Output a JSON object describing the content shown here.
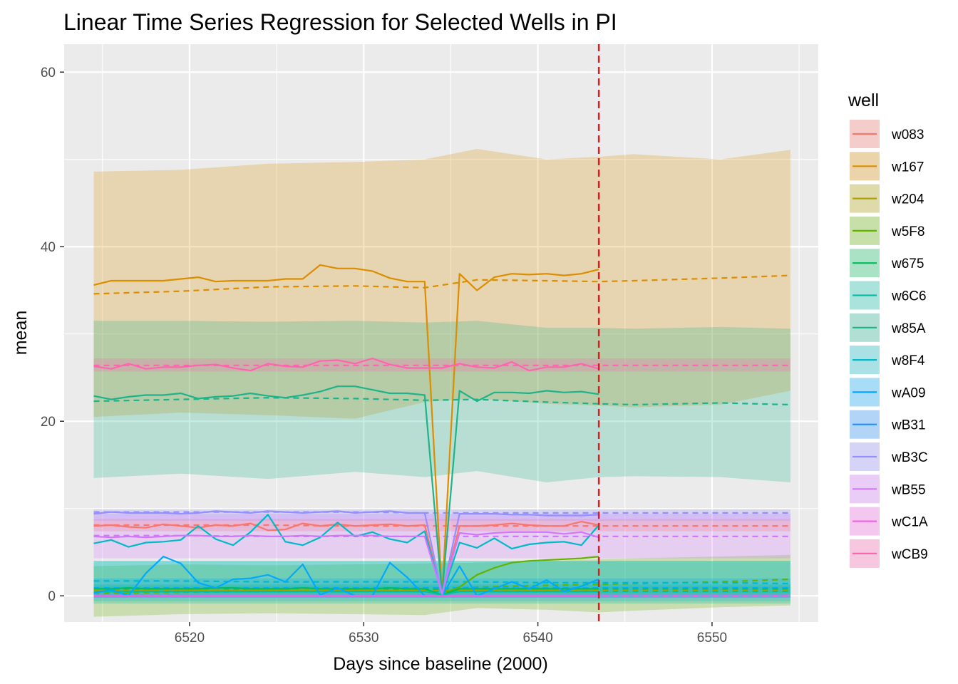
{
  "chart_data": {
    "type": "line",
    "title": "Linear Time Series Regression for Selected Wells in PI",
    "xlabel": "Days since baseline (2000)",
    "ylabel": "mean",
    "xlim": [
      6512.8,
      6556.1
    ],
    "ylim": [
      -3.0,
      63.2
    ],
    "x_ticks": [
      6520,
      6530,
      6540,
      6550
    ],
    "y_ticks": [
      0,
      20,
      40,
      60
    ],
    "grid": true,
    "legend": {
      "title": "well",
      "position": "right"
    },
    "vline": {
      "x": 6543.5,
      "color": "#e41a1c",
      "style": "dashed"
    },
    "x_obs": [
      6514.5,
      6515.5,
      6516.5,
      6517.5,
      6518.5,
      6519.5,
      6520.5,
      6521.5,
      6522.5,
      6523.5,
      6524.5,
      6525.5,
      6526.5,
      6527.5,
      6528.5,
      6529.5,
      6530.5,
      6531.5,
      6532.5,
      6533.5,
      6534.5,
      6535.5,
      6536.5,
      6537.5,
      6538.5,
      6539.5,
      6540.5,
      6541.5,
      6542.5,
      6543.5
    ],
    "x_fit": [
      6514.5,
      6519.5,
      6524.5,
      6529.5,
      6533.5,
      6536.5,
      6540.5,
      6543.5,
      6545.5,
      6550.5,
      6554.5
    ],
    "series": [
      {
        "name": "w083",
        "color": "#F8766D",
        "observed": [
          8.0,
          8.1,
          7.9,
          7.8,
          8.2,
          8.0,
          7.8,
          8.1,
          8.0,
          8.3,
          7.5,
          7.6,
          8.3,
          8.0,
          8.2,
          8.0,
          8.1,
          8.2,
          8.0,
          8.1,
          0.2,
          8.0,
          8.0,
          8.1,
          8.3,
          8.1,
          8.0,
          8.0,
          8.5,
          8.1
        ],
        "fitted": [
          8.1,
          8.1,
          8.1,
          8.0,
          8.0,
          8.0,
          8.0,
          8.0,
          8.0,
          8.0,
          8.0
        ],
        "lower": [
          7.4,
          7.4,
          7.4,
          7.4,
          7.4,
          7.4,
          7.4,
          7.4,
          7.4,
          7.4,
          7.4
        ],
        "upper": [
          8.8,
          8.8,
          8.8,
          8.8,
          8.8,
          8.8,
          8.8,
          8.8,
          8.8,
          8.8,
          8.8
        ]
      },
      {
        "name": "w167",
        "color": "#DB8E00",
        "observed": [
          35.6,
          36.1,
          36.1,
          36.1,
          36.1,
          36.3,
          36.5,
          36.0,
          36.1,
          36.1,
          36.1,
          36.3,
          36.3,
          37.9,
          37.5,
          37.5,
          37.2,
          36.4,
          36.0,
          36.0,
          0.1,
          36.9,
          35.0,
          36.5,
          36.9,
          36.8,
          36.9,
          36.7,
          36.9,
          37.4
        ],
        "fitted": [
          34.6,
          34.9,
          35.4,
          35.5,
          35.3,
          36.2,
          36.1,
          36.0,
          36.1,
          36.4,
          36.7
        ],
        "lower": [
          20.5,
          21.0,
          20.7,
          20.3,
          22.2,
          22.6,
          22.0,
          21.8,
          21.6,
          21.9,
          23.5
        ],
        "upper": [
          48.6,
          48.8,
          49.5,
          49.7,
          50.0,
          51.2,
          50.0,
          50.3,
          50.6,
          50.0,
          51.1
        ]
      },
      {
        "name": "w204",
        "color": "#AEA200",
        "observed": [
          0.5,
          0.6,
          0.5,
          0.6,
          0.5,
          0.6,
          0.6,
          0.7,
          0.6,
          0.6,
          0.7,
          0.6,
          0.7,
          0.7,
          0.6,
          0.6,
          0.7,
          0.6,
          0.6,
          0.6,
          0.1,
          0.6,
          0.6,
          0.7,
          0.7,
          0.7,
          0.6,
          0.7,
          0.7,
          0.7
        ],
        "fitted": [
          0.6,
          0.6,
          0.6,
          0.6,
          0.6,
          0.6,
          0.6,
          0.6,
          0.6,
          0.6,
          0.6
        ],
        "lower": [
          0.1,
          0.1,
          0.1,
          0.1,
          0.1,
          0.1,
          0.1,
          0.1,
          0.1,
          0.1,
          0.1
        ],
        "upper": [
          1.1,
          1.1,
          1.1,
          1.1,
          1.1,
          1.1,
          1.1,
          1.1,
          1.1,
          1.1,
          1.1
        ]
      },
      {
        "name": "w5F8",
        "color": "#64B200",
        "observed": [
          null,
          null,
          null,
          null,
          null,
          null,
          null,
          null,
          null,
          null,
          null,
          null,
          null,
          null,
          null,
          null,
          null,
          null,
          null,
          null,
          0.2,
          1.0,
          2.4,
          3.2,
          3.8,
          4.0,
          4.1,
          4.2,
          4.3,
          4.5
        ],
        "fitted": [
          0.3,
          0.4,
          0.5,
          0.7,
          0.7,
          1.0,
          1.2,
          1.3,
          1.4,
          1.6,
          1.9
        ],
        "lower": [
          -2.4,
          -2.1,
          -2.0,
          -2.1,
          -2.2,
          -1.4,
          -1.6,
          -1.9,
          -1.7,
          -1.3,
          -1.1
        ],
        "upper": [
          3.4,
          3.6,
          3.5,
          3.6,
          3.7,
          3.8,
          4.0,
          4.2,
          4.3,
          4.5,
          4.7
        ]
      },
      {
        "name": "w675",
        "color": "#00BD5C",
        "observed": [
          0.8,
          0.8,
          0.9,
          0.8,
          0.8,
          0.8,
          0.8,
          0.9,
          0.9,
          0.8,
          0.8,
          0.8,
          0.9,
          0.8,
          0.8,
          0.8,
          0.8,
          0.9,
          0.8,
          0.8,
          0.1,
          0.8,
          0.8,
          0.8,
          0.8,
          0.8,
          0.8,
          0.8,
          0.8,
          0.8
        ],
        "fitted": [
          0.8,
          0.8,
          0.8,
          0.8,
          0.8,
          0.8,
          0.8,
          0.8,
          0.8,
          0.8,
          0.8
        ],
        "lower": [
          0.3,
          0.3,
          0.3,
          0.3,
          0.3,
          0.3,
          0.3,
          0.3,
          0.3,
          0.3,
          0.3
        ],
        "upper": [
          1.3,
          1.3,
          1.3,
          1.3,
          1.3,
          1.3,
          1.3,
          1.3,
          1.3,
          1.3,
          1.3
        ]
      },
      {
        "name": "w6C6",
        "color": "#00C1A7",
        "observed": [
          0.5,
          0.5,
          0.5,
          0.5,
          0.5,
          0.5,
          0.5,
          0.5,
          0.5,
          0.5,
          0.5,
          0.5,
          0.5,
          0.5,
          0.5,
          0.5,
          0.5,
          0.5,
          0.5,
          0.5,
          0.1,
          0.5,
          0.5,
          0.5,
          0.5,
          0.5,
          0.5,
          0.5,
          0.5,
          0.5
        ],
        "fitted": [
          0.5,
          0.5,
          0.5,
          0.5,
          0.5,
          0.5,
          0.5,
          0.5,
          0.5,
          0.5,
          0.5
        ],
        "lower": [
          -0.9,
          -0.9,
          -0.9,
          -0.9,
          -0.9,
          -0.9,
          -0.9,
          -0.9,
          -0.9,
          -0.9,
          -0.9
        ],
        "upper": [
          4.0,
          4.0,
          4.0,
          4.0,
          4.0,
          4.0,
          4.0,
          4.0,
          4.0,
          4.0,
          4.0
        ]
      },
      {
        "name": "w85A",
        "color": "#1FB38A",
        "observed": [
          22.9,
          22.5,
          22.8,
          23.0,
          23.0,
          23.2,
          22.6,
          22.8,
          22.9,
          23.2,
          22.9,
          22.7,
          23.0,
          23.4,
          24.0,
          24.0,
          23.6,
          23.2,
          23.2,
          23.0,
          0.2,
          23.5,
          22.3,
          23.3,
          23.3,
          23.2,
          23.5,
          23.3,
          23.4,
          23.1
        ],
        "fitted": [
          22.3,
          22.5,
          22.7,
          22.6,
          22.4,
          22.5,
          22.2,
          22.0,
          21.9,
          22.1,
          21.9
        ],
        "lower": [
          13.5,
          14.0,
          13.4,
          14.2,
          13.6,
          14.3,
          13.0,
          13.6,
          13.7,
          13.6,
          13.0
        ],
        "upper": [
          31.5,
          31.5,
          31.4,
          31.5,
          31.3,
          31.5,
          30.7,
          30.7,
          30.6,
          30.8,
          30.6
        ]
      },
      {
        "name": "w8F4",
        "color": "#00BAC7",
        "observed": [
          6.0,
          6.4,
          5.6,
          6.1,
          6.2,
          6.4,
          8.0,
          6.5,
          5.8,
          7.3,
          9.3,
          6.2,
          5.8,
          6.7,
          8.4,
          6.8,
          7.3,
          6.5,
          6.1,
          7.4,
          0.1,
          6.1,
          5.5,
          6.6,
          5.4,
          5.9,
          6.1,
          6.2,
          5.8,
          8.1
        ],
        "fitted": [
          1.7,
          1.7,
          1.6,
          1.6,
          1.6,
          1.6,
          1.5,
          1.5,
          1.5,
          1.5,
          1.4
        ],
        "lower": [
          -0.6,
          -0.6,
          -0.6,
          -0.6,
          -0.6,
          -0.6,
          -0.6,
          -0.6,
          -0.6,
          -0.6,
          -0.6
        ],
        "upper": [
          4.0,
          4.0,
          4.0,
          4.0,
          4.0,
          4.0,
          4.0,
          4.0,
          4.0,
          4.0,
          4.0
        ]
      },
      {
        "name": "wA09",
        "color": "#00A9FF",
        "observed": [
          0.3,
          0.7,
          0.0,
          2.6,
          4.5,
          3.7,
          1.5,
          0.9,
          1.9,
          2.0,
          2.4,
          1.6,
          3.6,
          0.1,
          0.9,
          0.0,
          0.0,
          3.8,
          2.1,
          0.0,
          0.0,
          3.4,
          0.0,
          0.8,
          1.6,
          0.8,
          1.8,
          0.5,
          1.1,
          1.9
        ],
        "fitted": [
          0.9,
          0.9,
          0.9,
          0.9,
          0.9,
          0.9,
          0.9,
          0.9,
          0.9,
          0.9,
          0.9
        ],
        "lower": [
          -0.2,
          -0.2,
          -0.2,
          -0.2,
          -0.2,
          -0.2,
          -0.2,
          -0.2,
          -0.2,
          -0.2,
          -0.2
        ],
        "upper": [
          2.0,
          2.0,
          2.0,
          2.0,
          2.0,
          2.0,
          2.0,
          2.0,
          2.0,
          2.0,
          2.0
        ]
      },
      {
        "name": "wB31",
        "color": "#1E90FF",
        "observed": [
          0.0,
          0.0,
          0.0,
          0.0,
          0.0,
          0.0,
          0.0,
          0.0,
          0.0,
          0.0,
          0.0,
          0.0,
          0.0,
          0.0,
          0.0,
          0.0,
          0.0,
          0.0,
          0.0,
          0.0,
          0.0,
          0.0,
          0.0,
          0.0,
          0.0,
          0.0,
          0.0,
          0.0,
          0.0,
          0.0
        ],
        "fitted": [
          0.0,
          0.0,
          0.0,
          0.0,
          0.0,
          0.0,
          0.0,
          0.0,
          0.0,
          0.0,
          0.0
        ],
        "lower": [
          -0.2,
          -0.2,
          -0.2,
          -0.2,
          -0.2,
          -0.2,
          -0.2,
          -0.2,
          -0.2,
          -0.2,
          -0.2
        ],
        "upper": [
          0.2,
          0.2,
          0.2,
          0.2,
          0.2,
          0.2,
          0.2,
          0.2,
          0.2,
          0.2,
          0.2
        ]
      },
      {
        "name": "wB3C",
        "color": "#9590FF",
        "observed": [
          9.4,
          9.6,
          9.5,
          9.5,
          9.5,
          9.4,
          9.5,
          9.7,
          9.6,
          9.5,
          9.7,
          9.6,
          9.5,
          9.6,
          9.7,
          9.5,
          9.6,
          9.7,
          9.5,
          9.5,
          0.2,
          9.4,
          9.4,
          9.4,
          9.3,
          9.3,
          9.2,
          9.2,
          9.2,
          9.3
        ],
        "fitted": [
          9.6,
          9.6,
          9.6,
          9.6,
          9.5,
          9.5,
          9.5,
          9.5,
          9.5,
          9.5,
          9.5
        ],
        "lower": [
          8.6,
          8.6,
          8.6,
          8.6,
          8.6,
          8.6,
          8.6,
          8.6,
          8.6,
          8.6,
          8.6
        ],
        "upper": [
          9.9,
          9.9,
          9.9,
          9.9,
          9.9,
          9.9,
          9.9,
          9.9,
          9.9,
          9.9,
          9.9
        ]
      },
      {
        "name": "wB55",
        "color": "#D376FF",
        "observed": [
          6.8,
          6.7,
          6.8,
          6.7,
          6.8,
          6.9,
          6.9,
          6.8,
          6.8,
          6.9,
          6.8,
          6.8,
          6.9,
          6.8,
          6.9,
          6.9,
          6.9,
          6.8,
          6.8,
          6.8,
          0.2,
          7.2,
          7.0,
          7.2,
          7.3,
          7.3,
          7.3,
          7.1,
          7.3,
          6.7
        ],
        "fitted": [
          6.9,
          6.9,
          6.8,
          6.8,
          6.8,
          6.8,
          6.8,
          6.8,
          6.8,
          6.8,
          6.8
        ],
        "lower": [
          4.3,
          4.3,
          4.3,
          4.3,
          4.3,
          4.3,
          4.3,
          4.3,
          4.3,
          4.3,
          4.3
        ],
        "upper": [
          9.4,
          9.4,
          9.4,
          9.4,
          9.4,
          9.4,
          9.4,
          9.4,
          9.4,
          9.4,
          9.4
        ]
      },
      {
        "name": "wC1A",
        "color": "#F564E3",
        "observed": [
          0.0,
          0.0,
          0.0,
          0.0,
          0.0,
          0.0,
          0.0,
          0.0,
          0.0,
          0.0,
          0.0,
          0.0,
          0.0,
          0.0,
          0.0,
          0.0,
          0.0,
          0.0,
          0.0,
          0.0,
          0.0,
          0.0,
          0.0,
          0.0,
          0.0,
          0.0,
          0.0,
          0.0,
          0.0,
          0.0
        ],
        "fitted": [
          0.0,
          0.0,
          0.0,
          0.0,
          0.0,
          0.0,
          0.0,
          0.0,
          0.0,
          0.0,
          0.0
        ],
        "lower": [
          -0.2,
          -0.2,
          -0.2,
          -0.2,
          -0.2,
          -0.2,
          -0.2,
          -0.2,
          -0.2,
          -0.2,
          -0.2
        ],
        "upper": [
          0.2,
          0.2,
          0.2,
          0.2,
          0.2,
          0.2,
          0.2,
          0.2,
          0.2,
          0.2,
          0.2
        ]
      },
      {
        "name": "wCB9",
        "color": "#FF64B0",
        "observed": [
          26.3,
          26.0,
          26.6,
          26.0,
          26.2,
          26.2,
          26.4,
          26.5,
          26.1,
          25.8,
          26.6,
          26.3,
          26.2,
          26.9,
          27.0,
          26.6,
          27.2,
          26.5,
          26.1,
          26.1,
          26.1,
          26.6,
          26.2,
          26.1,
          26.8,
          25.8,
          26.2,
          26.2,
          26.6,
          26.0
        ],
        "fitted": [
          26.4,
          26.4,
          26.4,
          26.4,
          26.4,
          26.4,
          26.4,
          26.4,
          26.4,
          26.4,
          26.4
        ],
        "lower": [
          25.7,
          25.7,
          25.7,
          25.7,
          25.7,
          25.7,
          25.7,
          25.7,
          25.7,
          25.7,
          25.7
        ],
        "upper": [
          27.2,
          27.2,
          27.2,
          27.2,
          27.2,
          27.2,
          27.2,
          27.2,
          27.2,
          27.2,
          27.2
        ]
      }
    ]
  }
}
